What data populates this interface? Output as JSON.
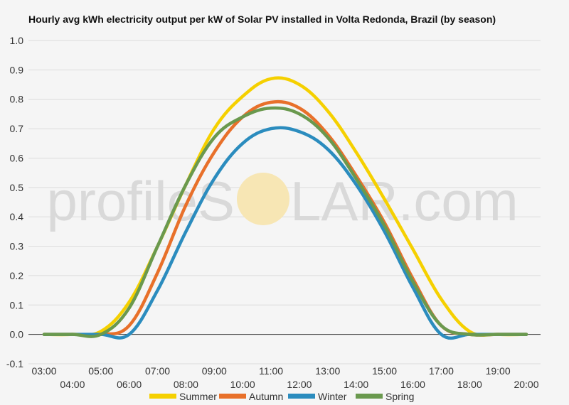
{
  "chart_data": {
    "type": "line",
    "title": "Hourly avg kWh electricity output per kW of Solar PV installed in Volta Redonda, Brazil (by season)",
    "xlabel": "",
    "ylabel": "",
    "ylim": [
      -0.1,
      1.0
    ],
    "grid": true,
    "legend_position": "bottom",
    "yticks": [
      "-0.1",
      "0.0",
      "0.1",
      "0.2",
      "0.3",
      "0.4",
      "0.5",
      "0.6",
      "0.7",
      "0.8",
      "0.9",
      "1.0"
    ],
    "categories": [
      "03:00",
      "04:00",
      "05:00",
      "06:00",
      "07:00",
      "08:00",
      "09:00",
      "10:00",
      "11:00",
      "12:00",
      "13:00",
      "14:00",
      "15:00",
      "16:00",
      "17:00",
      "18:00",
      "19:00",
      "20:00"
    ],
    "series": [
      {
        "name": "Summer",
        "color": "#f5d000",
        "values": [
          0,
          0,
          0.01,
          0.11,
          0.3,
          0.51,
          0.7,
          0.81,
          0.87,
          0.85,
          0.76,
          0.62,
          0.46,
          0.29,
          0.12,
          0.01,
          0,
          0
        ]
      },
      {
        "name": "Autumn",
        "color": "#e8702a",
        "values": [
          0,
          0,
          0,
          0.03,
          0.21,
          0.44,
          0.62,
          0.74,
          0.79,
          0.77,
          0.68,
          0.54,
          0.38,
          0.19,
          0.03,
          0,
          0,
          0
        ]
      },
      {
        "name": "Winter",
        "color": "#2b8cbe",
        "values": [
          0,
          0,
          0,
          0,
          0.15,
          0.35,
          0.53,
          0.65,
          0.7,
          0.69,
          0.63,
          0.51,
          0.35,
          0.16,
          0,
          0,
          0,
          0
        ]
      },
      {
        "name": "Spring",
        "color": "#6a994e",
        "values": [
          0,
          0,
          0,
          0.09,
          0.3,
          0.51,
          0.67,
          0.74,
          0.77,
          0.75,
          0.67,
          0.53,
          0.37,
          0.18,
          0.03,
          0,
          0,
          0
        ]
      }
    ]
  },
  "watermark": {
    "left": "profileS",
    "right": "LAR.com"
  }
}
